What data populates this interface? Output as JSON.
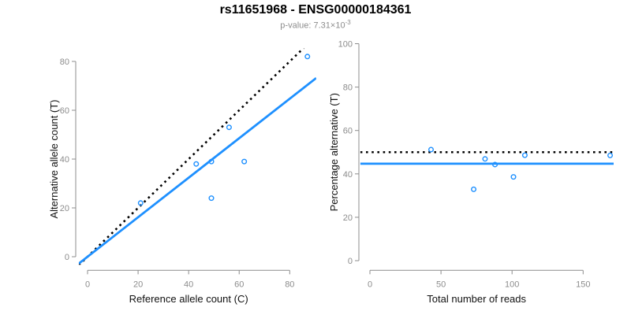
{
  "header": {
    "title": "rs11651968 - ENSG00000184361",
    "pvalue_prefix": "p-value: 7.31×10",
    "pvalue_exponent": "-3"
  },
  "colors": {
    "accent_blue": "#1E90FF",
    "dotted_black": "#000000",
    "axis_gray": "#8C8C8C",
    "tick_label_gray": "#8C8C8C",
    "axis_title_color": "#111111",
    "title_color": "#000000",
    "subtitle_gray": "#8C8C8C",
    "background": "#FFFFFF"
  },
  "point_style": {
    "shape": "open-circle",
    "radius": 2.8,
    "stroke_width": 1.4
  },
  "chart_data": [
    {
      "type": "scatter",
      "panel": "left",
      "title": "",
      "xlabel": "Reference allele count (C)",
      "ylabel": "Alternative allele count (T)",
      "xlim": [
        0,
        87
      ],
      "ylim": [
        0,
        82
      ],
      "xticks": [
        0,
        20,
        40,
        60,
        80
      ],
      "yticks": [
        0,
        20,
        40,
        60,
        80
      ],
      "grid": false,
      "legend": null,
      "points": [
        [
          21,
          22
        ],
        [
          43,
          38
        ],
        [
          49,
          24
        ],
        [
          49,
          39
        ],
        [
          56,
          53
        ],
        [
          62,
          39
        ],
        [
          87,
          82
        ]
      ],
      "lines": [
        {
          "name": "identity-null-line",
          "style": "dotted",
          "color": "#000000",
          "slope": 1,
          "intercept": 0
        },
        {
          "name": "fitted-proportion-line",
          "style": "solid",
          "color": "#1E90FF",
          "slope": 0.809,
          "intercept": 0
        }
      ]
    },
    {
      "type": "scatter",
      "panel": "right",
      "title": "",
      "xlabel": "Total number of reads",
      "ylabel": "Percentage alternative (T)",
      "xlim": [
        0,
        169
      ],
      "ylim": [
        0,
        100
      ],
      "xticks": [
        0,
        50,
        100,
        150
      ],
      "yticks": [
        0,
        20,
        40,
        60,
        80,
        100
      ],
      "grid": false,
      "legend": null,
      "points": [
        [
          43,
          51.2
        ],
        [
          73,
          32.9
        ],
        [
          81,
          46.9
        ],
        [
          88,
          44.3
        ],
        [
          101,
          38.6
        ],
        [
          109,
          48.6
        ],
        [
          169,
          48.5
        ]
      ],
      "lines": [
        {
          "name": "null-50-percent-line",
          "style": "dotted",
          "color": "#000000",
          "y": 50
        },
        {
          "name": "fitted-percentage-line",
          "style": "solid",
          "color": "#1E90FF",
          "y": 44.7
        }
      ]
    }
  ]
}
